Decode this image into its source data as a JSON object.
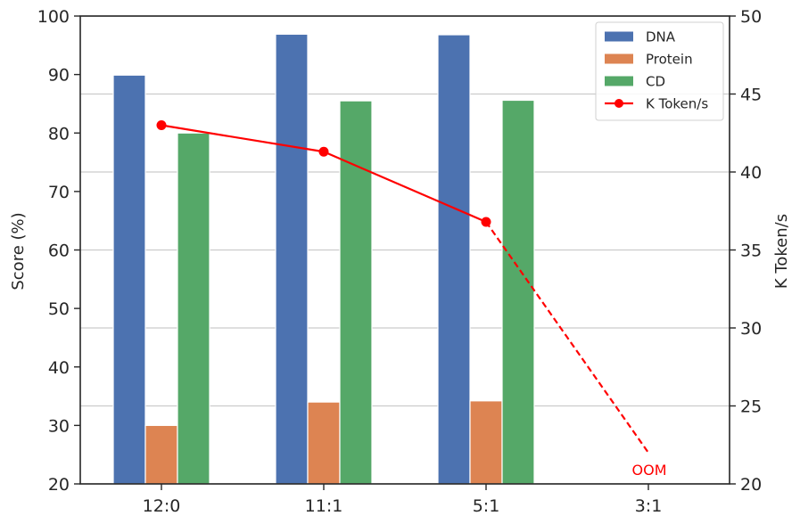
{
  "chart_data": {
    "type": "bar",
    "categories": [
      "12:0",
      "11:1",
      "5:1",
      "3:1"
    ],
    "series": [
      {
        "name": "DNA",
        "axis": "left",
        "color": "#4c72b0",
        "values": [
          89.9,
          96.9,
          96.8,
          null
        ]
      },
      {
        "name": "Protein",
        "axis": "left",
        "color": "#dd8452",
        "values": [
          30.0,
          34.0,
          34.2,
          null
        ]
      },
      {
        "name": "CD",
        "axis": "left",
        "color": "#55a868",
        "values": [
          80.0,
          85.5,
          85.6,
          null
        ]
      },
      {
        "name": "K Token/s",
        "axis": "right",
        "type": "line",
        "color": "#ff0000",
        "values": [
          43.0,
          41.3,
          36.8,
          22.0
        ],
        "dashed_from_index": 2
      }
    ],
    "ylabel": "Score (%)",
    "ylim": [
      20,
      100
    ],
    "yticks": [
      "20",
      "30",
      "40",
      "50",
      "60",
      "70",
      "80",
      "90",
      "100"
    ],
    "y2label": "K Token/s",
    "y2lim": [
      20,
      50
    ],
    "y2ticks": [
      "20",
      "25",
      "30",
      "35",
      "40",
      "45",
      "50"
    ],
    "annotations": [
      {
        "text": "OOM",
        "category": "3:1"
      }
    ],
    "grid": "horizontal, right axis",
    "legend": "top-right"
  }
}
